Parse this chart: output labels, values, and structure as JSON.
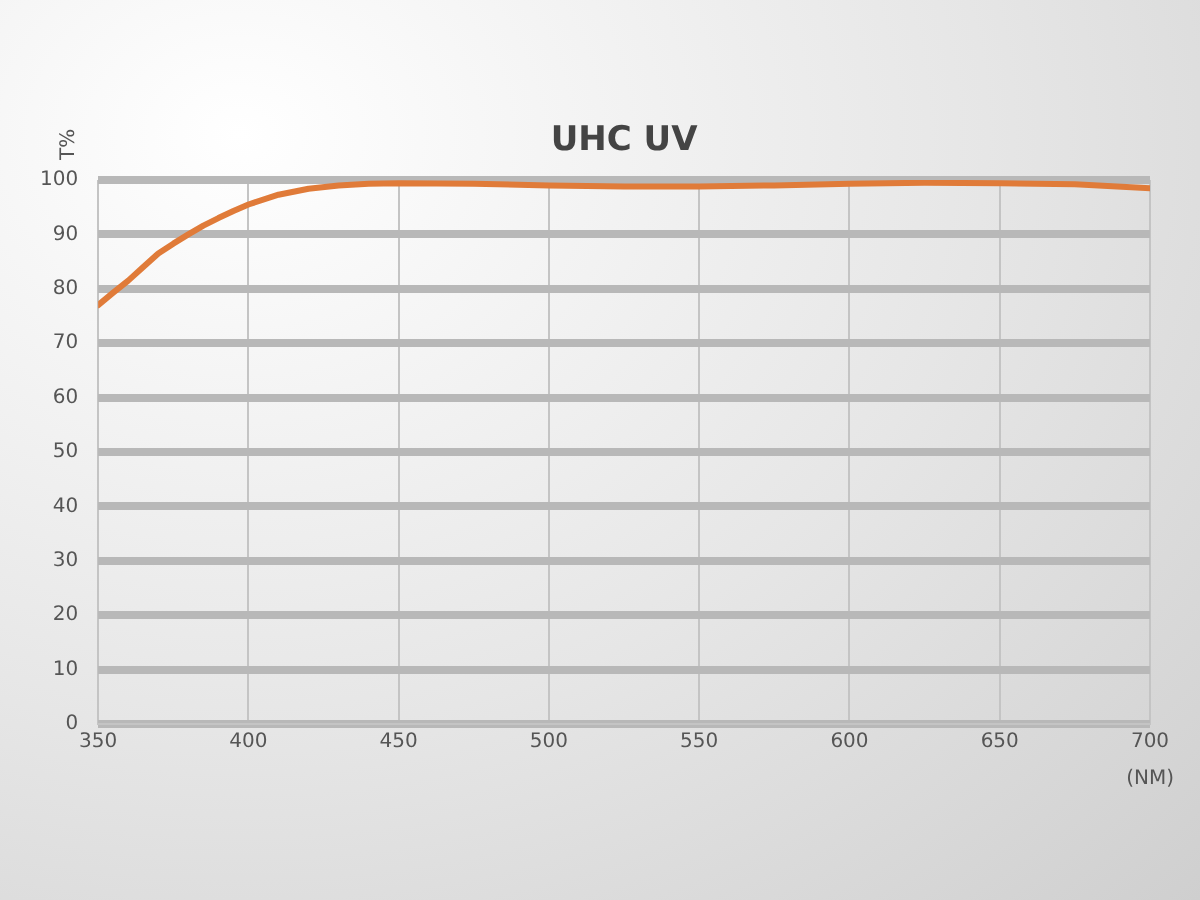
{
  "chart_data": {
    "type": "line",
    "title": "UHC UV",
    "xlabel": "(NM)",
    "ylabel": "T%",
    "x": [
      350,
      355,
      360,
      365,
      370,
      375,
      380,
      385,
      390,
      395,
      400,
      410,
      420,
      430,
      440,
      450,
      475,
      500,
      525,
      550,
      575,
      600,
      625,
      650,
      675,
      700
    ],
    "series": [
      {
        "color": "#e07b39",
        "values": [
          77,
          79.3,
          81.5,
          84,
          86.5,
          88.3,
          90,
          91.6,
          93,
          94.3,
          95.5,
          97.3,
          98.4,
          99,
          99.3,
          99.4,
          99.3,
          99,
          98.8,
          98.8,
          99,
          99.3,
          99.5,
          99.4,
          99.2,
          98.5
        ]
      }
    ],
    "xlim": [
      350,
      700
    ],
    "xticks": [
      350,
      400,
      450,
      500,
      550,
      600,
      650,
      700
    ],
    "ylim": [
      0,
      100
    ],
    "yticks": [
      0,
      10,
      20,
      30,
      40,
      50,
      60,
      70,
      80,
      90,
      100
    ],
    "grid": true,
    "legend": false,
    "marker": "none",
    "line_style": "solid"
  }
}
